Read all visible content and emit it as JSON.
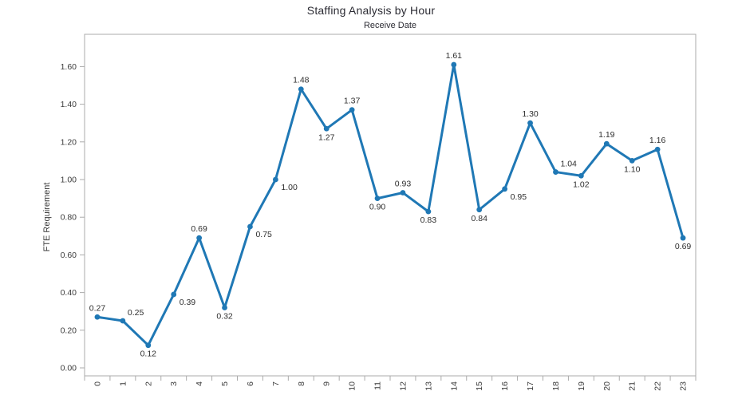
{
  "chart_data": {
    "type": "line",
    "title": "Staffing Analysis by Hour",
    "subtitle": "Receive Date",
    "xlabel": "",
    "ylabel": "FTE Requirement",
    "x_categories": [
      "0",
      "1",
      "2",
      "3",
      "4",
      "5",
      "6",
      "7",
      "8",
      "9",
      "10",
      "11",
      "12",
      "13",
      "14",
      "15",
      "16",
      "17",
      "18",
      "19",
      "20",
      "21",
      "22",
      "23"
    ],
    "values": [
      0.27,
      0.25,
      0.12,
      0.39,
      0.69,
      0.32,
      0.75,
      1.0,
      1.48,
      1.27,
      1.37,
      0.9,
      0.93,
      0.83,
      1.61,
      0.84,
      0.95,
      1.3,
      1.04,
      1.02,
      1.19,
      1.1,
      1.16,
      0.69
    ],
    "point_labels": [
      "0.27",
      "0.25",
      "0.12",
      "0.39",
      "0.69",
      "0.32",
      "0.75",
      "1.00",
      "1.48",
      "1.27",
      "1.37",
      "0.90",
      "0.93",
      "0.83",
      "1.61",
      "0.84",
      "0.95",
      "1.30",
      "1.04",
      "1.02",
      "1.19",
      "1.10",
      "1.16",
      "0.69"
    ],
    "label_placement": [
      "above",
      "above-right",
      "below",
      "below-right",
      "above",
      "below",
      "below-right",
      "below-right",
      "above",
      "below",
      "above",
      "below",
      "above",
      "below",
      "above",
      "below",
      "below-right",
      "above",
      "above-right",
      "below",
      "above",
      "below",
      "above",
      "below"
    ],
    "ylim": [
      0.0,
      1.7
    ],
    "ytick_values": [
      0.0,
      0.2,
      0.4,
      0.6,
      0.8,
      1.0,
      1.2,
      1.4,
      1.6
    ],
    "ytick_labels": [
      "0.00",
      "0.20",
      "0.40",
      "0.60",
      "0.80",
      "1.00",
      "1.20",
      "1.40",
      "1.60"
    ],
    "grid": false,
    "legend": "none",
    "marker": "circle",
    "colors": {
      "line": "#1f78b5",
      "marker": "#1f78b5",
      "axis": "#ababab",
      "tick_text": "#3b3b3b",
      "data_label_text": "#2e2e2e",
      "title_text": "#2b2b33",
      "background": "#ffffff"
    }
  }
}
